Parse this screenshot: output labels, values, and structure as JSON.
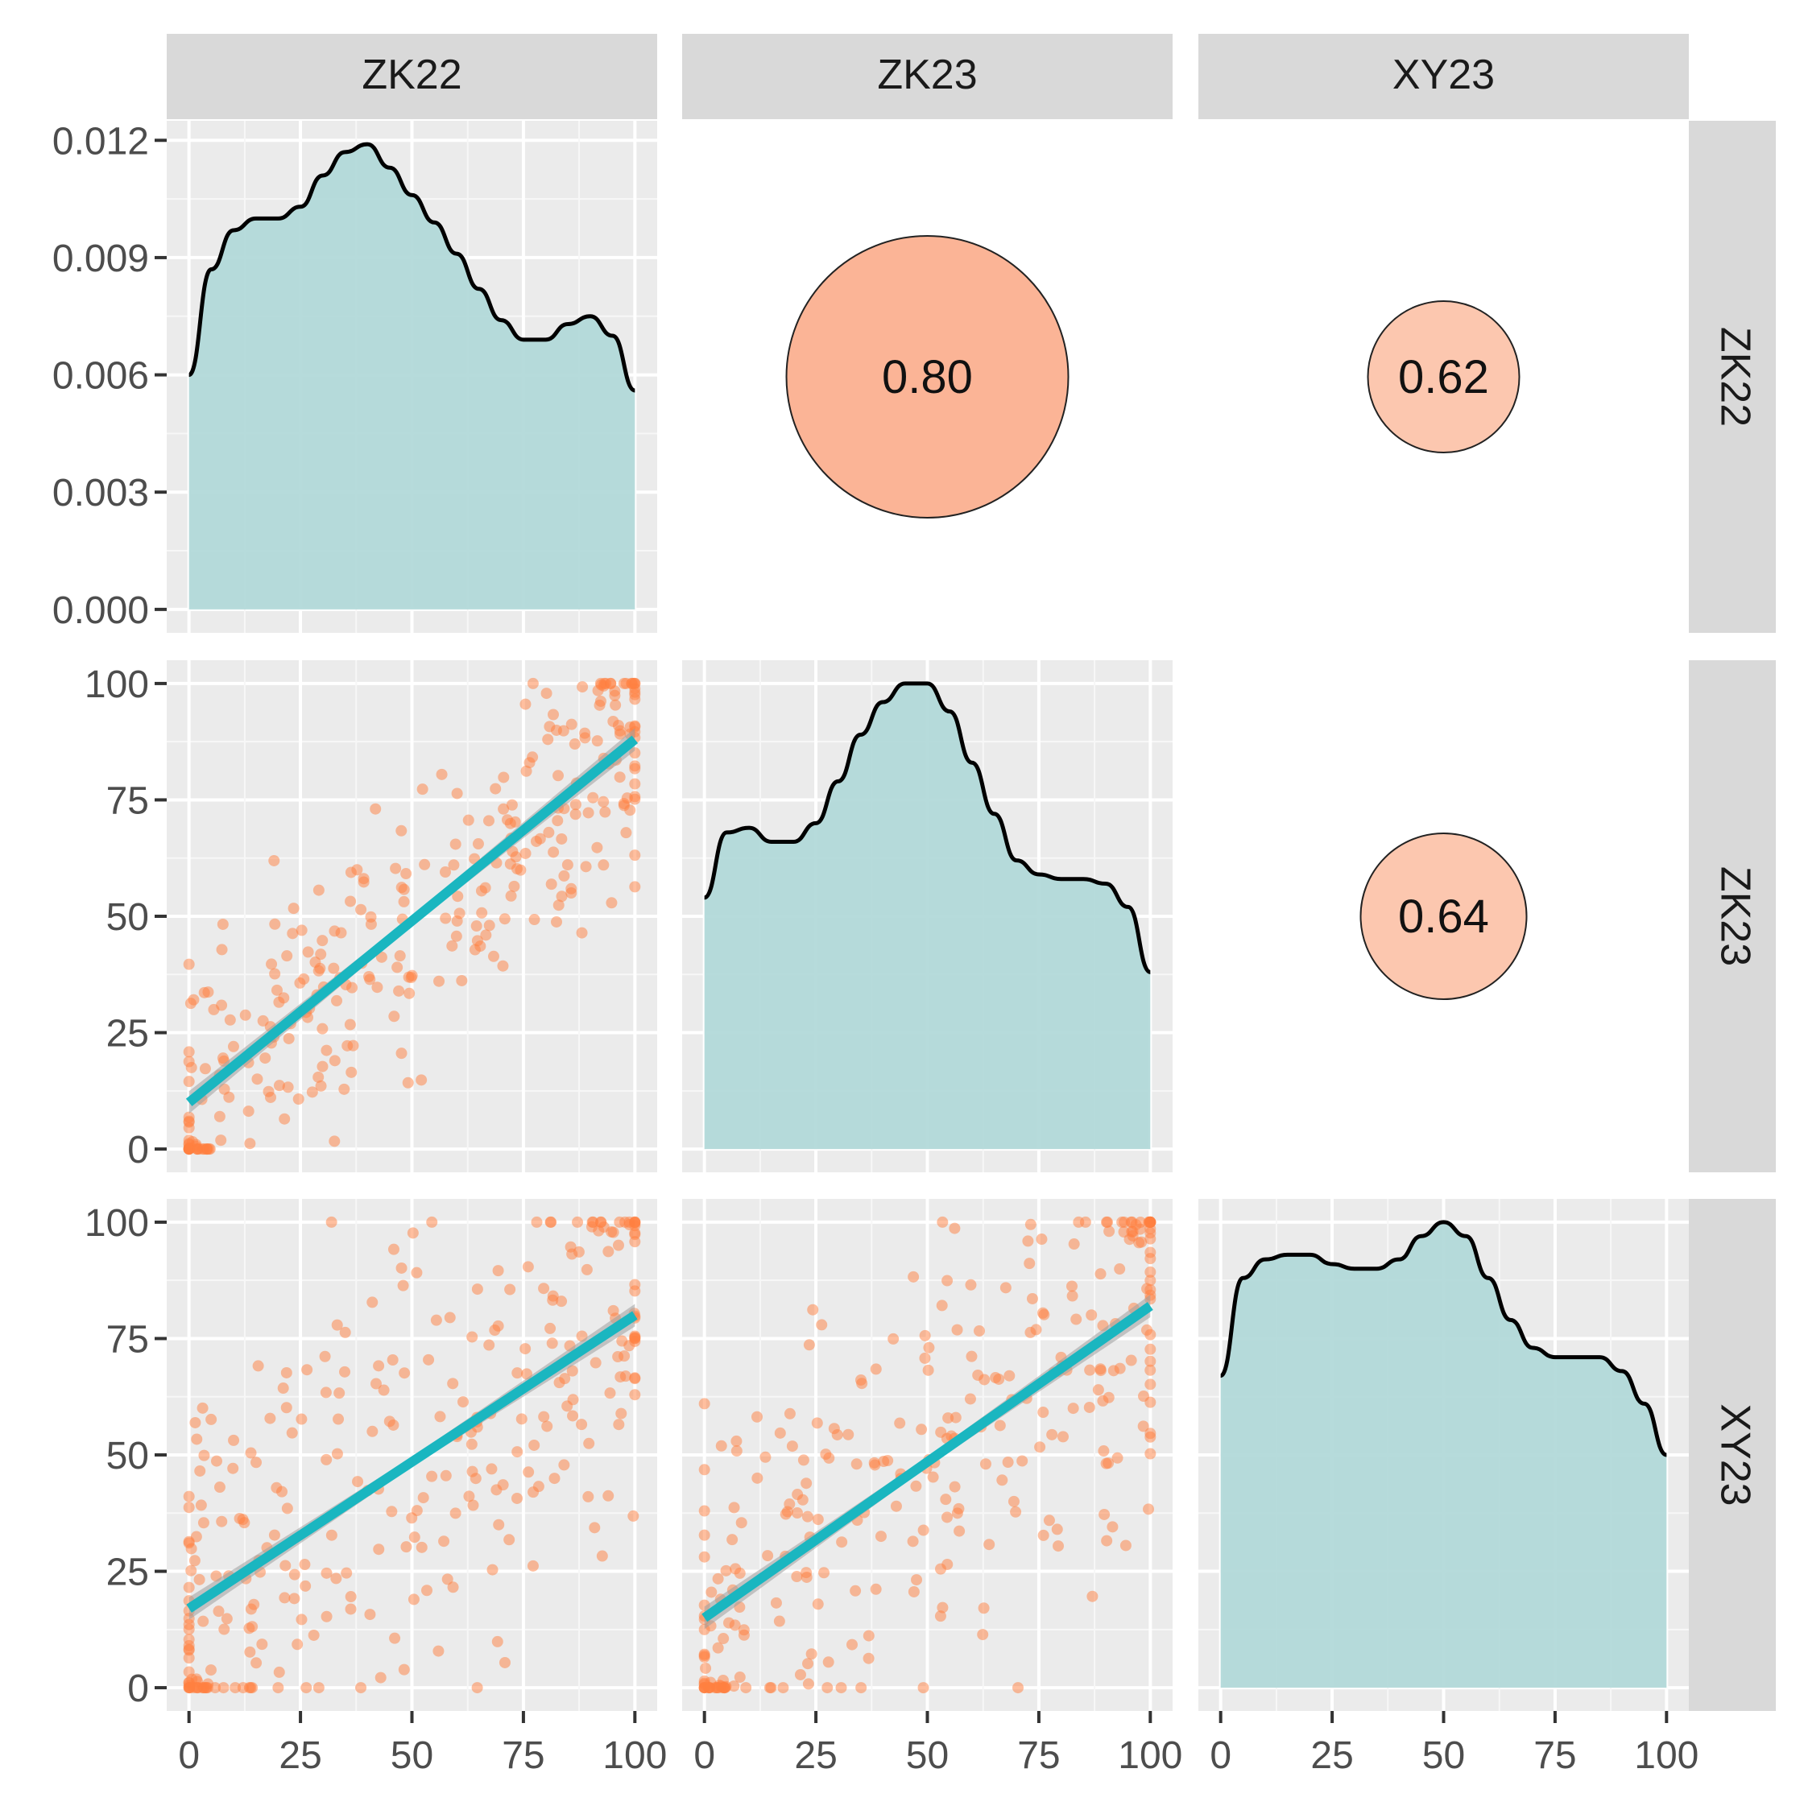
{
  "chart_data": {
    "type": "scatter_matrix",
    "variables": [
      "ZK22",
      "ZK23",
      "XY23"
    ],
    "x_ticks": [
      0,
      25,
      50,
      75,
      100
    ],
    "x_tick_labels": [
      "0",
      "25",
      "50",
      "75",
      "100"
    ],
    "xlim": [
      -5,
      105
    ],
    "density_y_ticks": [
      0.0,
      0.003,
      0.006,
      0.009,
      0.012
    ],
    "density_y_tick_labels": [
      "0.000",
      "0.003",
      "0.006",
      "0.009",
      "0.012"
    ],
    "density_ylim": [
      -0.0006,
      0.0125
    ],
    "scatter_y_ticks": [
      0,
      25,
      50,
      75,
      100
    ],
    "scatter_y_tick_labels": [
      "0",
      "25",
      "50",
      "75",
      "100"
    ],
    "scatter_ylim": [
      -5,
      105
    ],
    "correlations": [
      {
        "row": "ZK22",
        "col": "ZK23",
        "value": 0.8,
        "label": "0.80"
      },
      {
        "row": "ZK22",
        "col": "XY23",
        "value": 0.62,
        "label": "0.62"
      },
      {
        "row": "ZK23",
        "col": "XY23",
        "value": 0.64,
        "label": "0.64"
      }
    ],
    "densities": [
      {
        "variable": "ZK22",
        "x": [
          0,
          5,
          10,
          15,
          20,
          25,
          30,
          35,
          40,
          45,
          50,
          55,
          60,
          65,
          70,
          75,
          80,
          85,
          90,
          95,
          100
        ],
        "y": [
          0.006,
          0.0087,
          0.0097,
          0.01,
          0.01,
          0.0103,
          0.0111,
          0.0117,
          0.0119,
          0.0113,
          0.0106,
          0.0099,
          0.0091,
          0.0082,
          0.0074,
          0.0069,
          0.0069,
          0.0073,
          0.0075,
          0.007,
          0.0056
        ]
      },
      {
        "variable": "ZK23",
        "x": [
          0,
          5,
          10,
          15,
          20,
          25,
          30,
          35,
          40,
          45,
          50,
          55,
          60,
          65,
          70,
          75,
          80,
          85,
          90,
          95,
          100
        ],
        "y": [
          0.0054,
          0.0068,
          0.0069,
          0.0066,
          0.0066,
          0.007,
          0.0079,
          0.0089,
          0.0096,
          0.01,
          0.01,
          0.0094,
          0.0083,
          0.0072,
          0.0062,
          0.0059,
          0.0058,
          0.0058,
          0.0057,
          0.0052,
          0.0038
        ]
      },
      {
        "variable": "XY23",
        "x": [
          0,
          5,
          10,
          15,
          20,
          25,
          30,
          35,
          40,
          45,
          50,
          55,
          60,
          65,
          70,
          75,
          80,
          85,
          90,
          95,
          100
        ],
        "y": [
          0.0067,
          0.0088,
          0.0092,
          0.0093,
          0.0093,
          0.0091,
          0.009,
          0.009,
          0.0092,
          0.0097,
          0.01,
          0.0097,
          0.0088,
          0.0079,
          0.0073,
          0.0071,
          0.0071,
          0.0071,
          0.0068,
          0.0061,
          0.005
        ]
      }
    ],
    "scatters": [
      {
        "x": "ZK22",
        "y": "ZK23",
        "fit": [
          [
            0,
            10
          ],
          [
            100,
            88
          ]
        ]
      },
      {
        "x": "ZK22",
        "y": "XY23",
        "fit": [
          [
            0,
            17
          ],
          [
            100,
            80
          ]
        ]
      },
      {
        "x": "ZK23",
        "y": "XY23",
        "fit": [
          [
            0,
            15
          ],
          [
            100,
            82
          ]
        ]
      }
    ],
    "colors": {
      "density_fill": "#b2d9d9",
      "points": "#ff7f3f",
      "fit_line": "#1ab6c0",
      "confidence_band": "#9e9e9e",
      "panel_background": "#ebebeb",
      "strip_background": "#d9d9d9",
      "corr_circle_large": "#fbb496",
      "corr_circle_small": "#fcc7af"
    }
  }
}
